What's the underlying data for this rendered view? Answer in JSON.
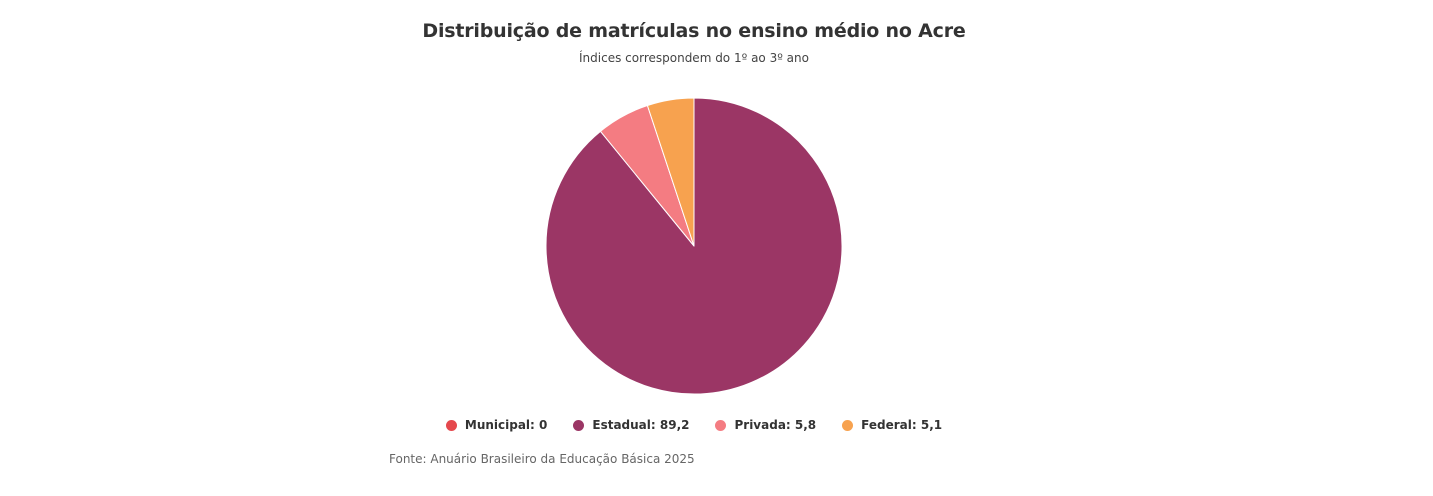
{
  "chart_data": {
    "type": "pie",
    "title": "Distribuição de matrículas no ensino médio no Acre",
    "subtitle": "Índices correspondem do 1º ao 3º ano",
    "source": "Fonte: Anuário Brasileiro da Educação Básica 2025",
    "legend_position": "bottom",
    "slices": [
      {
        "label": "Municipal",
        "value": 0,
        "display": "0",
        "color": "#e5484d"
      },
      {
        "label": "Estadual",
        "value": 89.2,
        "display": "89,2",
        "color": "#9b3665"
      },
      {
        "label": "Privada",
        "value": 5.8,
        "display": "5,8",
        "color": "#f47c82"
      },
      {
        "label": "Federal",
        "value": 5.1,
        "display": "5,1",
        "color": "#f7a24f"
      }
    ]
  }
}
